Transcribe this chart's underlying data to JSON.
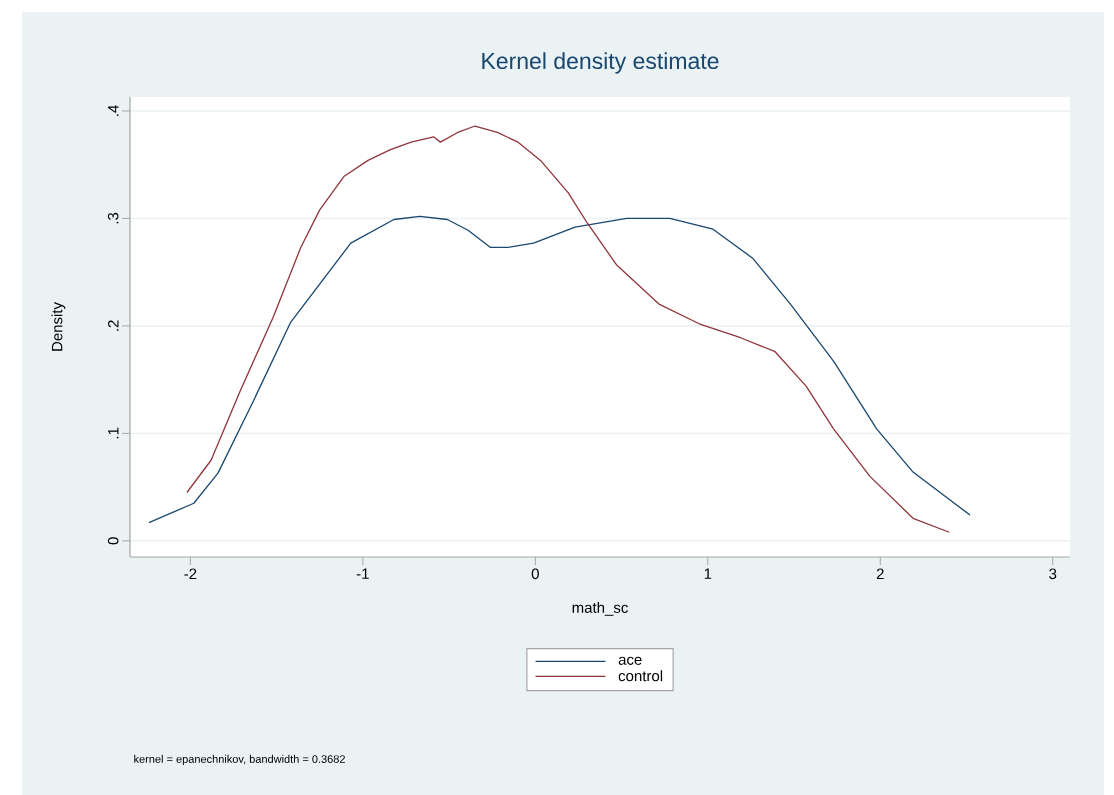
{
  "chart_data": {
    "type": "line",
    "title": "Kernel density estimate",
    "xlabel": "math_sc",
    "ylabel": "Density",
    "annotations": [
      "kernel = epanechnikov, bandwidth = 0.3682"
    ],
    "series": [
      {
        "name": "ace",
        "color": "#1a476f",
        "x": [
          -2.24,
          -1.98,
          -1.84,
          -1.65,
          -1.42,
          -1.07,
          -0.82,
          -0.67,
          -0.51,
          -0.39,
          -0.26,
          -0.16,
          -0.01,
          0.23,
          0.53,
          0.78,
          1.03,
          1.26,
          1.48,
          1.73,
          1.98,
          2.19,
          2.52
        ],
        "values": [
          0.017,
          0.035,
          0.063,
          0.125,
          0.203,
          0.277,
          0.299,
          0.302,
          0.299,
          0.289,
          0.273,
          0.273,
          0.277,
          0.292,
          0.3,
          0.3,
          0.29,
          0.263,
          0.22,
          0.167,
          0.104,
          0.064,
          0.024
        ]
      },
      {
        "name": "control",
        "color": "#90353b",
        "x": [
          -2.02,
          -1.88,
          -1.71,
          -1.52,
          -1.36,
          -1.25,
          -1.11,
          -0.97,
          -0.84,
          -0.72,
          -0.59,
          -0.55,
          -0.45,
          -0.35,
          -0.22,
          -0.1,
          0.03,
          0.19,
          0.3,
          0.47,
          0.72,
          0.95,
          1.19,
          1.39,
          1.57,
          1.73,
          1.94,
          2.19,
          2.4
        ],
        "values": [
          0.045,
          0.075,
          0.14,
          0.208,
          0.273,
          0.308,
          0.339,
          0.354,
          0.364,
          0.371,
          0.376,
          0.371,
          0.38,
          0.386,
          0.38,
          0.371,
          0.354,
          0.324,
          0.296,
          0.257,
          0.22,
          0.202,
          0.189,
          0.176,
          0.144,
          0.104,
          0.06,
          0.021,
          0.008
        ]
      }
    ],
    "xlim": [
      -2.35,
      3.1
    ],
    "ylim": [
      -0.015,
      0.413
    ],
    "xticks": [
      -2,
      -1,
      0,
      1,
      2,
      3
    ],
    "yticks": [
      0,
      {
        "value": 0.1,
        "label": ".1"
      },
      {
        "value": 0.2,
        "label": ".2"
      },
      {
        "value": 0.3,
        "label": ".3"
      },
      {
        "value": 0.4,
        "label": ".4"
      }
    ],
    "grid": "y",
    "legend": "bottom",
    "marker": "none",
    "line_style": "solid"
  }
}
